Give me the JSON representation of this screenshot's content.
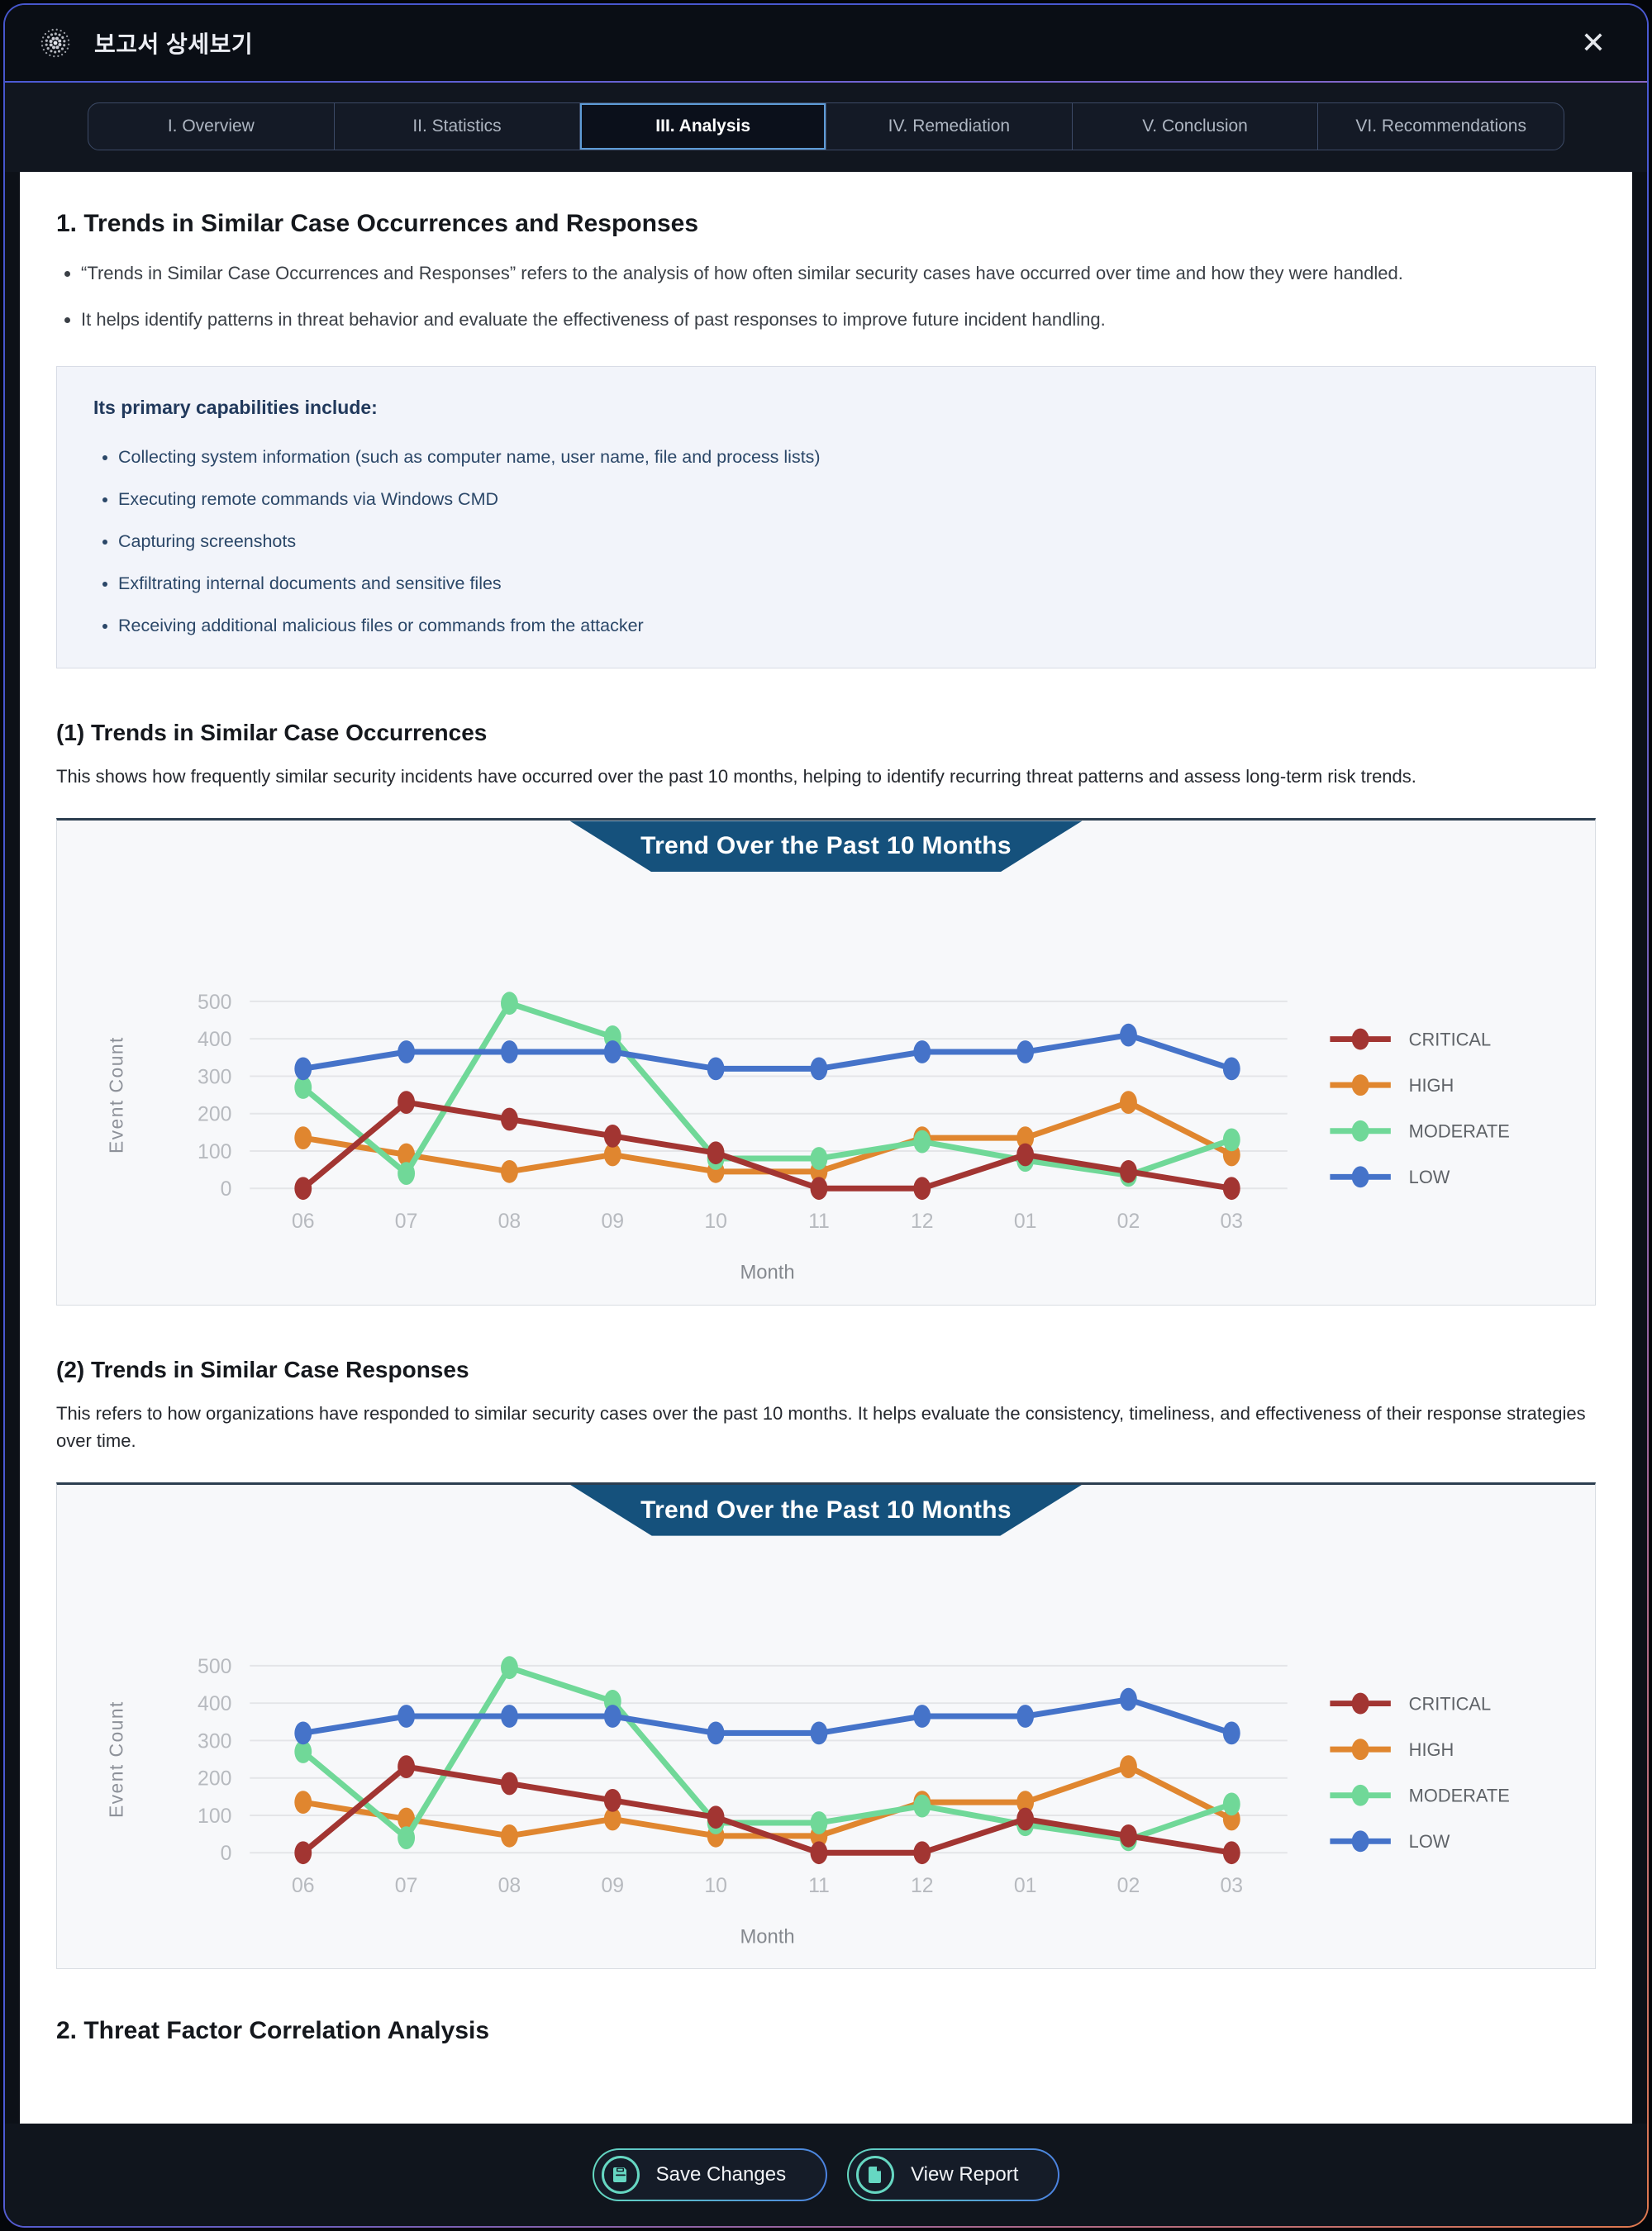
{
  "window": {
    "title": "보고서 상세보기",
    "close_icon": "✕"
  },
  "tabs": {
    "items": [
      "I. Overview",
      "II. Statistics",
      "III. Analysis",
      "IV. Remediation",
      "V. Conclusion",
      "VI. Recommendations"
    ],
    "active_index": 2
  },
  "analysis": {
    "section1_heading": "1. Trends in Similar Case Occurrences and Responses",
    "section1_bullets": [
      "“Trends in Similar Case Occurrences and Responses” refers to the analysis of how often similar security cases have occurred over time and how they were handled.",
      "It helps identify patterns in threat behavior and evaluate the effectiveness of past responses to improve future incident handling."
    ],
    "capabilities": {
      "title": "Its primary capabilities include:",
      "items": [
        "Collecting system information (such as computer name, user name, file and process lists)",
        "Executing remote commands via Windows CMD",
        "Capturing screenshots",
        "Exfiltrating internal documents and sensitive files",
        "Receiving additional malicious files or commands from the attacker"
      ]
    },
    "sub1_heading": "(1) Trends in Similar Case Occurrences",
    "sub1_description": "This shows how frequently similar security incidents have occurred over the past 10 months, helping to identify recurring threat patterns and assess long-term risk trends.",
    "sub2_heading": "(2) Trends in Similar Case Responses",
    "sub2_description": "This refers to how organizations have responded to similar security cases over the past 10 months. It helps evaluate the consistency, timeliness, and effectiveness of their response strategies over time.",
    "section2_heading": "2. Threat Factor Correlation Analysis"
  },
  "footer": {
    "save_label": "Save Changes",
    "view_label": "View Report"
  },
  "colors": {
    "critical": "#a23532",
    "high": "#e0862f",
    "moderate": "#70d898",
    "low": "#4573c9",
    "banner": "#15517c",
    "frame_top": "#4b5ad4",
    "frame_bottom_right": "#e0784e",
    "active_tab_border": "#5e9bd6",
    "button_icon": "#66d7c2"
  },
  "chart_data": [
    {
      "type": "line",
      "title": "Trend Over the Past 10 Months",
      "xlabel": "Month",
      "ylabel": "Event Count",
      "x": [
        "06",
        "07",
        "08",
        "09",
        "10",
        "11",
        "12",
        "01",
        "02",
        "03"
      ],
      "ylim": [
        0,
        500
      ],
      "yticks": [
        0,
        100,
        200,
        300,
        400,
        500
      ],
      "grid": true,
      "legend_position": "right",
      "series": [
        {
          "name": "CRITICAL",
          "color": "#a23532",
          "values": [
            0,
            230,
            185,
            140,
            95,
            0,
            0,
            90,
            45,
            0
          ]
        },
        {
          "name": "HIGH",
          "color": "#e0862f",
          "values": [
            135,
            90,
            45,
            90,
            45,
            45,
            135,
            135,
            230,
            90
          ]
        },
        {
          "name": "MODERATE",
          "color": "#70d898",
          "values": [
            270,
            40,
            495,
            405,
            80,
            80,
            125,
            75,
            35,
            130
          ]
        },
        {
          "name": "LOW",
          "color": "#4573c9",
          "values": [
            320,
            365,
            365,
            365,
            320,
            320,
            365,
            365,
            410,
            320
          ]
        }
      ]
    },
    {
      "type": "line",
      "title": "Trend Over the Past 10 Months",
      "xlabel": "Month",
      "ylabel": "Event Count",
      "x": [
        "06",
        "07",
        "08",
        "09",
        "10",
        "11",
        "12",
        "01",
        "02",
        "03"
      ],
      "ylim": [
        0,
        500
      ],
      "yticks": [
        0,
        100,
        200,
        300,
        400,
        500
      ],
      "grid": true,
      "legend_position": "right",
      "series": [
        {
          "name": "CRITICAL",
          "color": "#a23532",
          "values": [
            0,
            230,
            185,
            140,
            95,
            0,
            0,
            90,
            45,
            0
          ]
        },
        {
          "name": "HIGH",
          "color": "#e0862f",
          "values": [
            135,
            90,
            45,
            90,
            45,
            45,
            135,
            135,
            230,
            90
          ]
        },
        {
          "name": "MODERATE",
          "color": "#70d898",
          "values": [
            270,
            40,
            495,
            405,
            80,
            80,
            125,
            75,
            35,
            130
          ]
        },
        {
          "name": "LOW",
          "color": "#4573c9",
          "values": [
            320,
            365,
            365,
            365,
            320,
            320,
            365,
            365,
            410,
            320
          ]
        }
      ]
    }
  ]
}
